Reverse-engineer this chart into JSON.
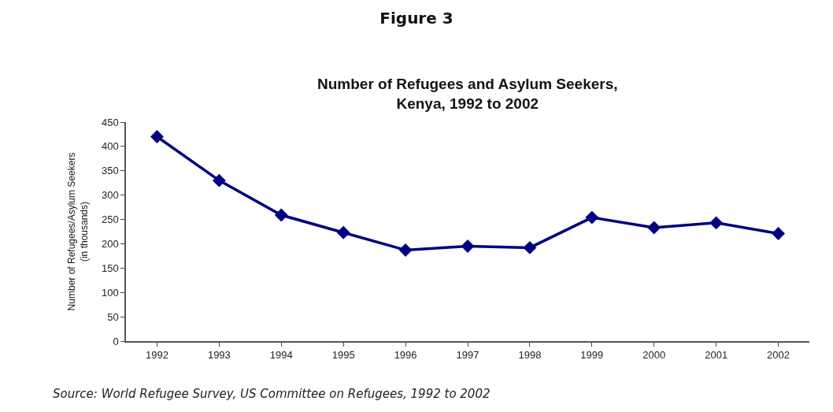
{
  "chart_data": {
    "type": "line",
    "title": "Figure 3",
    "subtitle": "Number of Refugees and Asylum Seekers,\nKenya, 1992 to 2002",
    "ylabel": "Number of Refugees/Asylum Seekers\n(in thousands)",
    "categories": [
      "1992",
      "1993",
      "1994",
      "1995",
      "1996",
      "1997",
      "1998",
      "1999",
      "2000",
      "2001",
      "2002"
    ],
    "series": [
      {
        "color": "#000080",
        "values": [
          420,
          330,
          259,
          223,
          187,
          195,
          192,
          254,
          233,
          243,
          221
        ]
      }
    ],
    "ylim": [
      0,
      450
    ],
    "yticks": [
      0,
      50,
      100,
      150,
      200,
      250,
      300,
      350,
      400,
      450
    ],
    "marker": "diamond",
    "line_style": "solid",
    "annotations": [
      "Source: World Refugee Survey, US Committee on Refugees, 1992 to 2002"
    ]
  }
}
